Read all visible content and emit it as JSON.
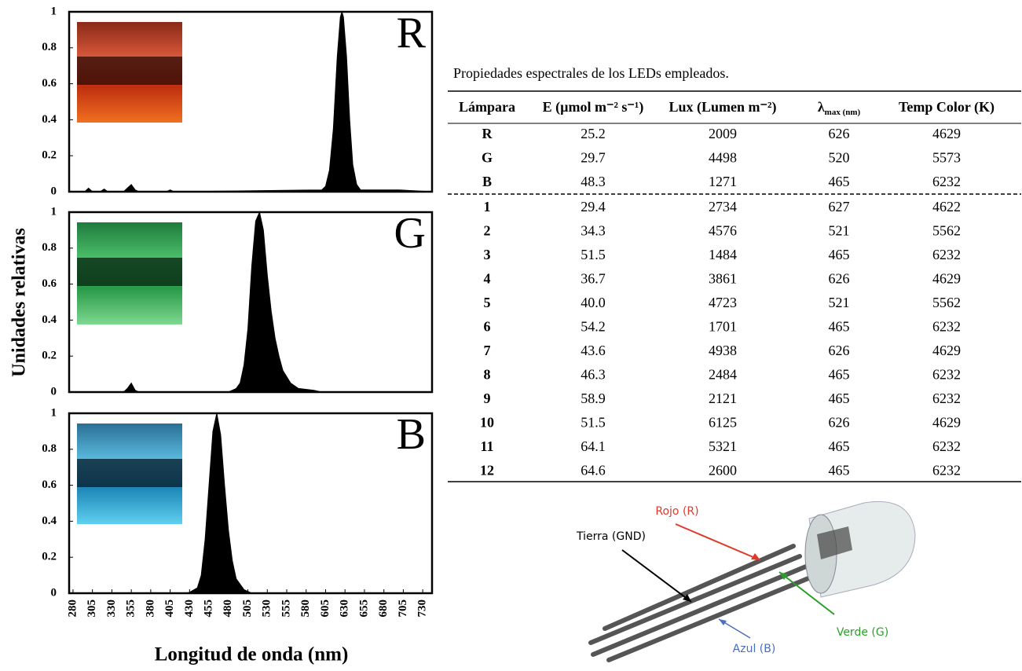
{
  "figure_labels": {
    "ylabel": "Unidades relativas",
    "xlabel": "Longitud de onda (nm)"
  },
  "chart_data": [
    {
      "type": "area",
      "label": "R",
      "color": "#000000",
      "xlim": [
        275,
        742
      ],
      "ylim": [
        0,
        1
      ],
      "yticks": [
        0,
        0.2,
        0.4,
        0.6,
        0.8,
        1
      ],
      "x": [
        280,
        295,
        300,
        305,
        315,
        320,
        325,
        345,
        350,
        355,
        360,
        365,
        400,
        405,
        410,
        600,
        605,
        610,
        615,
        620,
        624,
        626,
        628,
        632,
        636,
        640,
        645,
        650,
        700,
        742
      ],
      "values": [
        0,
        0,
        0.02,
        0,
        0,
        0.015,
        0,
        0,
        0.02,
        0.04,
        0.01,
        0,
        0,
        0.01,
        0,
        0.01,
        0.03,
        0.12,
        0.35,
        0.75,
        0.97,
        1,
        0.97,
        0.75,
        0.4,
        0.15,
        0.04,
        0.01,
        0.01,
        0
      ]
    },
    {
      "type": "area",
      "label": "G",
      "color": "#000000",
      "xlim": [
        275,
        742
      ],
      "ylim": [
        0,
        1
      ],
      "yticks": [
        0,
        0.2,
        0.4,
        0.6,
        0.8,
        1
      ],
      "x": [
        280,
        345,
        350,
        355,
        360,
        365,
        480,
        490,
        495,
        500,
        505,
        510,
        515,
        520,
        525,
        530,
        535,
        540,
        545,
        550,
        560,
        570,
        590,
        600,
        742
      ],
      "values": [
        0,
        0,
        0.02,
        0.05,
        0.01,
        0,
        0,
        0.02,
        0.05,
        0.15,
        0.35,
        0.7,
        0.95,
        1,
        0.9,
        0.65,
        0.45,
        0.3,
        0.2,
        0.12,
        0.05,
        0.02,
        0.01,
        0,
        0
      ]
    },
    {
      "type": "area",
      "label": "B",
      "color": "#000000",
      "xlim": [
        275,
        742
      ],
      "ylim": [
        0,
        1
      ],
      "yticks": [
        0,
        0.2,
        0.4,
        0.6,
        0.8,
        1
      ],
      "xticks": [
        280,
        305,
        330,
        355,
        380,
        405,
        430,
        455,
        480,
        505,
        530,
        555,
        580,
        605,
        630,
        655,
        680,
        705,
        730
      ],
      "x": [
        280,
        425,
        430,
        440,
        445,
        450,
        455,
        460,
        465,
        470,
        475,
        480,
        485,
        490,
        500,
        510,
        742
      ],
      "values": [
        0,
        0,
        0.005,
        0.03,
        0.1,
        0.3,
        0.6,
        0.9,
        1,
        0.88,
        0.6,
        0.35,
        0.18,
        0.08,
        0.02,
        0,
        0
      ]
    }
  ],
  "table": {
    "title": "Propiedades espectrales de los LEDs empleados.",
    "header": [
      "Lámpara",
      "E (µmol m⁻² s⁻¹)",
      "Lux (Lumen m⁻²)",
      {
        "symbol": "λ",
        "subscript": "max (nm)"
      },
      "Temp Color (K)"
    ],
    "rows": [
      [
        "R",
        "25.2",
        "2009",
        "626",
        "4629"
      ],
      [
        "G",
        "29.7",
        "4498",
        "520",
        "5573"
      ],
      [
        "B",
        "48.3",
        "1271",
        "465",
        "6232"
      ],
      [
        "1",
        "29.4",
        "2734",
        "627",
        "4622"
      ],
      [
        "2",
        "34.3",
        "4576",
        "521",
        "5562"
      ],
      [
        "3",
        "51.5",
        "1484",
        "465",
        "6232"
      ],
      [
        "4",
        "36.7",
        "3861",
        "626",
        "4629"
      ],
      [
        "5",
        "40.0",
        "4723",
        "521",
        "5562"
      ],
      [
        "6",
        "54.2",
        "1701",
        "465",
        "6232"
      ],
      [
        "7",
        "43.6",
        "4938",
        "626",
        "4629"
      ],
      [
        "8",
        "46.3",
        "2484",
        "465",
        "6232"
      ],
      [
        "9",
        "58.9",
        "2121",
        "465",
        "6232"
      ],
      [
        "10",
        "51.5",
        "6125",
        "626",
        "4629"
      ],
      [
        "11",
        "64.1",
        "5321",
        "465",
        "6232"
      ],
      [
        "12",
        "64.6",
        "2600",
        "465",
        "6232"
      ]
    ]
  },
  "diagram": {
    "labels": [
      "Rojo (R)",
      "Tierra (GND)",
      "Verde (G)",
      "Azul (B)"
    ]
  }
}
